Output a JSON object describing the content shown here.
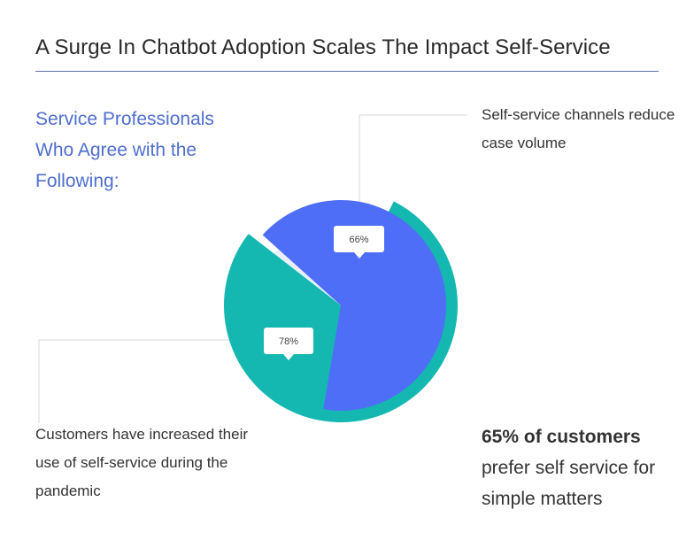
{
  "title": "A Surge In Chatbot Adoption Scales The Impact Self-Service",
  "subtitle": "Service Professionals Who Agree with the Following:",
  "callouts": {
    "top_right": "Self-service channels reduce case volume",
    "bottom_left": "Customers have increased their use of self-service during the pandemic"
  },
  "stat": {
    "strong": "65% of customers",
    "rest": "prefer self service for simple matters"
  },
  "colors": {
    "blue": "#4f6ef7",
    "teal": "#14b8b0",
    "pale": "#e9effb",
    "accent_text": "#4f6fce"
  },
  "chart_data": {
    "type": "pie",
    "slices": [
      {
        "label": "Self-service channels reduce case volume",
        "value": 66,
        "display": "66%"
      },
      {
        "label": "Customers have increased their use of self-service during the pandemic",
        "value": 78,
        "display": "78%"
      }
    ]
  }
}
